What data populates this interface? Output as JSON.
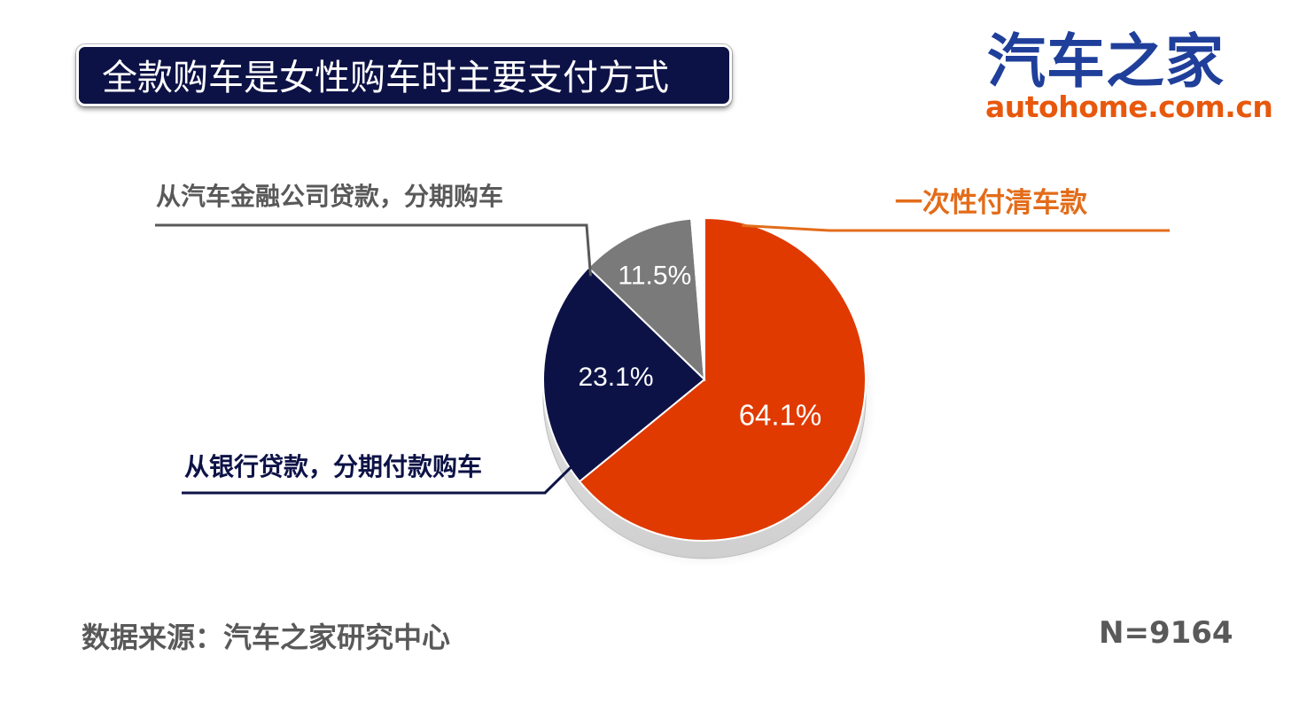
{
  "header": {
    "title": "全款购车是女性购车时主要支付方式"
  },
  "logo": {
    "name_cn": "汽车之家",
    "name_en": "autohome.com.cn"
  },
  "footer": {
    "source": "数据来源：汽车之家研究中心",
    "sample_size": "N=9164"
  },
  "chart_data": {
    "type": "pie",
    "slices": [
      {
        "label": "一次性付清车款",
        "value": 64.1,
        "display": "64.1%",
        "color": "#e03a00",
        "label_color": "#e36c1a"
      },
      {
        "label": "从银行贷款，分期付款购车",
        "value": 23.1,
        "display": "23.1%",
        "color": "#0d1246",
        "label_color": "#0d1246"
      },
      {
        "label": "从汽车金融公司贷款，分期购车",
        "value": 11.5,
        "display": "11.5%",
        "color": "#7a7a7a",
        "label_color": "#595959"
      },
      {
        "label": "",
        "value": 1.3,
        "display": "",
        "color": "#ffffff",
        "label_color": ""
      }
    ],
    "start_angle_deg": 0,
    "direction": "clockwise",
    "legend": "callout-labels"
  }
}
